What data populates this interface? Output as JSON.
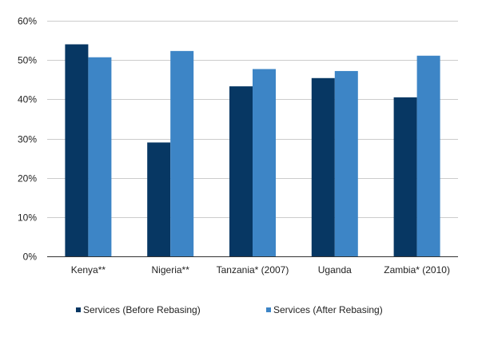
{
  "chart_data": {
    "type": "bar",
    "categories": [
      "Kenya**",
      "Nigeria**",
      "Tanzania* (2007)",
      "Uganda",
      "Zambia* (2010)"
    ],
    "series": [
      {
        "name": "Services (Before Rebasing)",
        "color": "#073763",
        "values": [
          54.0,
          29.0,
          43.3,
          45.4,
          40.5
        ]
      },
      {
        "name": "Services (After Rebasing)",
        "color": "#3d85c6",
        "values": [
          50.7,
          52.3,
          47.7,
          47.2,
          51.1
        ]
      }
    ],
    "y_ticks": [
      "0%",
      "10%",
      "20%",
      "30%",
      "40%",
      "50%",
      "60%"
    ],
    "ylim": [
      0,
      60
    ],
    "y_unit": "%",
    "grid": true,
    "legend_position": "bottom",
    "title": "",
    "xlabel": "",
    "ylabel": ""
  }
}
